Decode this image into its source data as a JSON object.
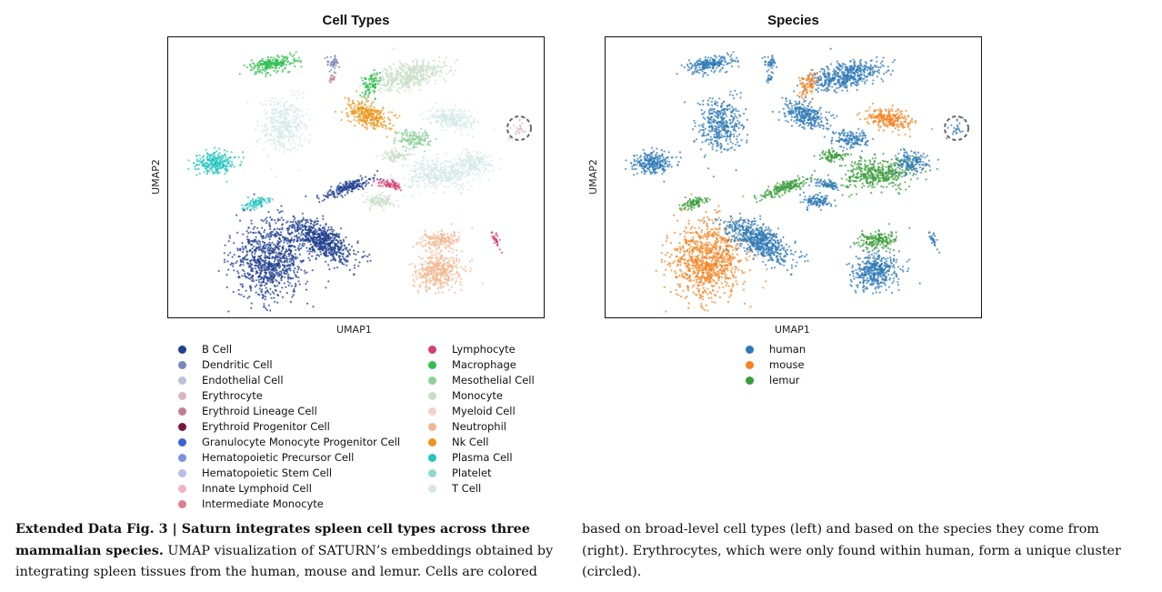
{
  "figures": {
    "cell_types": {
      "title": "Cell Types",
      "xlabel": "UMAP1",
      "ylabel": "UMAP2"
    },
    "species": {
      "title": "Species",
      "xlabel": "UMAP1",
      "ylabel": "UMAP2"
    }
  },
  "legend_cell_types_col1": [
    {
      "label": "B Cell",
      "color": "#1f3f8f"
    },
    {
      "label": "Dendritic Cell",
      "color": "#7d86b8"
    },
    {
      "label": "Endothelial Cell",
      "color": "#bcc2da"
    },
    {
      "label": "Erythrocyte",
      "color": "#d9b6bf"
    },
    {
      "label": "Erythroid Lineage Cell",
      "color": "#bf7f8f"
    },
    {
      "label": "Erythroid Progenitor Cell",
      "color": "#7d1240"
    },
    {
      "label": "Granulocyte Monocyte Progenitor Cell",
      "color": "#3d62d6"
    },
    {
      "label": "Hematopoietic Precursor Cell",
      "color": "#7b90e0"
    },
    {
      "label": "Hematopoietic Stem Cell",
      "color": "#b6bde6"
    },
    {
      "label": "Innate Lymphoid Cell",
      "color": "#efb3c1"
    },
    {
      "label": "Intermediate Monocyte",
      "color": "#dc7f91"
    }
  ],
  "legend_cell_types_col2": [
    {
      "label": "Lymphocyte",
      "color": "#d63f6f"
    },
    {
      "label": "Macrophage",
      "color": "#2fbf4f"
    },
    {
      "label": "Mesothelial Cell",
      "color": "#8ed09a"
    },
    {
      "label": "Monocyte",
      "color": "#c9dfc8"
    },
    {
      "label": "Myeloid Cell",
      "color": "#eed2c9"
    },
    {
      "label": "Neutrophil",
      "color": "#f2b893"
    },
    {
      "label": "Nk Cell",
      "color": "#e9961a"
    },
    {
      "label": "Plasma Cell",
      "color": "#25c4be"
    },
    {
      "label": "Platelet",
      "color": "#8ed8d2"
    },
    {
      "label": "T Cell",
      "color": "#d3e8e6"
    }
  ],
  "legend_species": [
    {
      "label": "human",
      "color": "#2f79b5"
    },
    {
      "label": "mouse",
      "color": "#f6821f"
    },
    {
      "label": "lemur",
      "color": "#3a9c3a"
    }
  ],
  "caption": {
    "heading": "Extended Data Fig. 3 | Saturn integrates spleen cell types across three mammalian species.",
    "col1_text": "UMAP visualization of SATURN’s embeddings obtained by integrating spleen tissues from the human, mouse and lemur. Cells are colored",
    "col2_text": "based on broad-level cell types (left) and based on the species they come from (right). Erythrocytes, which were only found within human, form a unique cluster (circled)."
  }
}
